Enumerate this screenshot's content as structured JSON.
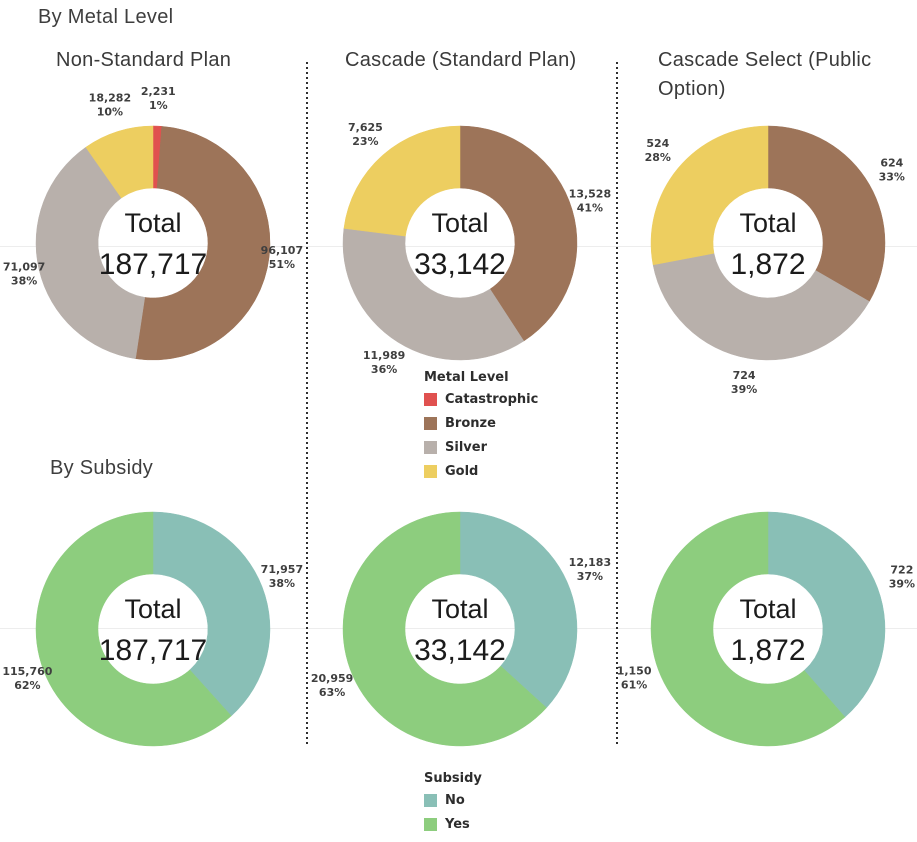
{
  "page": {
    "section1_title": "By Metal Level",
    "section2_title": "By Subsidy"
  },
  "columns": [
    {
      "title": "Non-Standard Plan"
    },
    {
      "title": "Cascade (Standard Plan)"
    },
    {
      "title": "Cascade Select (Public Option)"
    }
  ],
  "legends": {
    "metal": {
      "title": "Metal Level",
      "items": [
        {
          "label": "Catastrophic",
          "color": "#e0514f"
        },
        {
          "label": "Bronze",
          "color": "#9d7459"
        },
        {
          "label": "Silver",
          "color": "#b8b0ab"
        },
        {
          "label": "Gold",
          "color": "#edce60"
        }
      ]
    },
    "subsidy": {
      "title": "Subsidy",
      "items": [
        {
          "label": "No",
          "color": "#89bfb6"
        },
        {
          "label": "Yes",
          "color": "#8dcd7e"
        }
      ]
    }
  },
  "chart_data": [
    {
      "type": "pie",
      "group": "By Metal Level",
      "title": "Non-Standard Plan",
      "center_label": "Total",
      "total": 187717,
      "total_display": "187,717",
      "legend": "Metal Level",
      "slices": [
        {
          "label": "Catastrophic",
          "value": 2231,
          "display": "2,231",
          "pct": "1%",
          "color": "#e0514f"
        },
        {
          "label": "Bronze",
          "value": 96107,
          "display": "96,107",
          "pct": "51%",
          "color": "#9d7459"
        },
        {
          "label": "Silver",
          "value": 71097,
          "display": "71,097",
          "pct": "38%",
          "color": "#b8b0ab"
        },
        {
          "label": "Gold",
          "value": 18282,
          "display": "18,282",
          "pct": "10%",
          "color": "#edce60"
        }
      ]
    },
    {
      "type": "pie",
      "group": "By Metal Level",
      "title": "Cascade (Standard Plan)",
      "center_label": "Total",
      "total": 33142,
      "total_display": "33,142",
      "legend": "Metal Level",
      "slices": [
        {
          "label": "Bronze",
          "value": 13528,
          "display": "13,528",
          "pct": "41%",
          "color": "#9d7459"
        },
        {
          "label": "Silver",
          "value": 11989,
          "display": "11,989",
          "pct": "36%",
          "color": "#b8b0ab"
        },
        {
          "label": "Gold",
          "value": 7625,
          "display": "7,625",
          "pct": "23%",
          "color": "#edce60"
        }
      ]
    },
    {
      "type": "pie",
      "group": "By Metal Level",
      "title": "Cascade Select (Public Option)",
      "center_label": "Total",
      "total": 1872,
      "total_display": "1,872",
      "legend": "Metal Level",
      "slices": [
        {
          "label": "Bronze",
          "value": 624,
          "display": "624",
          "pct": "33%",
          "color": "#9d7459"
        },
        {
          "label": "Silver",
          "value": 724,
          "display": "724",
          "pct": "39%",
          "color": "#b8b0ab"
        },
        {
          "label": "Gold",
          "value": 524,
          "display": "524",
          "pct": "28%",
          "color": "#edce60"
        }
      ]
    },
    {
      "type": "pie",
      "group": "By Subsidy",
      "title": "Non-Standard Plan",
      "center_label": "Total",
      "total": 187717,
      "total_display": "187,717",
      "legend": "Subsidy",
      "slices": [
        {
          "label": "No",
          "value": 71957,
          "display": "71,957",
          "pct": "38%",
          "color": "#89bfb6"
        },
        {
          "label": "Yes",
          "value": 115760,
          "display": "115,760",
          "pct": "62%",
          "color": "#8dcd7e"
        }
      ]
    },
    {
      "type": "pie",
      "group": "By Subsidy",
      "title": "Cascade (Standard Plan)",
      "center_label": "Total",
      "total": 33142,
      "total_display": "33,142",
      "legend": "Subsidy",
      "slices": [
        {
          "label": "No",
          "value": 12183,
          "display": "12,183",
          "pct": "37%",
          "color": "#89bfb6"
        },
        {
          "label": "Yes",
          "value": 20959,
          "display": "20,959",
          "pct": "63%",
          "color": "#8dcd7e"
        }
      ]
    },
    {
      "type": "pie",
      "group": "By Subsidy",
      "title": "Cascade Select (Public Option)",
      "center_label": "Total",
      "total": 1872,
      "total_display": "1,872",
      "legend": "Subsidy",
      "slices": [
        {
          "label": "No",
          "value": 722,
          "display": "722",
          "pct": "39%",
          "color": "#89bfb6"
        },
        {
          "label": "Yes",
          "value": 1150,
          "display": "1,150",
          "pct": "61%",
          "color": "#8dcd7e"
        }
      ]
    }
  ]
}
